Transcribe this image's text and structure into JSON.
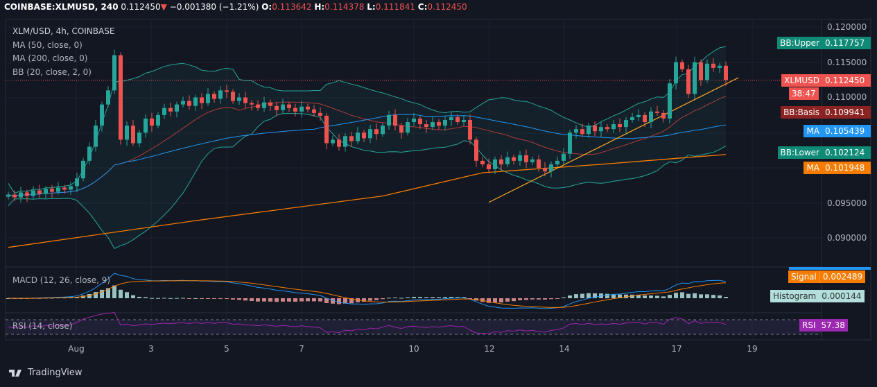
{
  "header": {
    "symbol": "COINBASE:XLMUSD, 240",
    "last": "0.112450",
    "change": "−0.001380 (−1.21%)",
    "o_label": "O:",
    "o": "0.113642",
    "h_label": "H:",
    "h": "0.114378",
    "l_label": "L:",
    "l": "0.111841",
    "c_label": "C:",
    "c": "0.112450"
  },
  "legend": {
    "title": "XLM/USD, 4h, COINBASE",
    "ma50": "MA (50, close, 0)",
    "ma200": "MA (200, close, 0)",
    "bb": "BB (20, close, 2, 0)",
    "macd": "MACD (12, 26, close, 9)",
    "rsi": "RSI (14, close)"
  },
  "price_axis": [
    "0.120000",
    "0.115000",
    "0.110000",
    "0.095000",
    "0.090000"
  ],
  "tags": [
    {
      "label": "BB:Upper",
      "value": "0.117757",
      "color": "#0e8a77",
      "price": 0.117757
    },
    {
      "label": "XLMUSD",
      "value": "0.112450",
      "color": "#ef5350",
      "price": 0.11245
    },
    {
      "label": "BB:Basis",
      "value": "0.109941",
      "color": "#8b2323",
      "price": 0.109941
    },
    {
      "label": "MA",
      "value": "0.105439",
      "color": "#2196f3",
      "price": 0.105439
    },
    {
      "label": "BB:Lower",
      "value": "0.102124",
      "color": "#0e8a77",
      "price": 0.102124
    },
    {
      "label": "MA",
      "value": "0.101948",
      "color": "#f57c00",
      "price": 0.101948
    }
  ],
  "countdown": "38:47",
  "macd_tags": {
    "signal_label": "Signal",
    "signal": "0.002489",
    "hist_label": "Histogram",
    "hist": "0.000144"
  },
  "rsi_tag": {
    "label": "RSI",
    "value": "57.38"
  },
  "time_axis": [
    "Aug",
    "3",
    "5",
    "7",
    "10",
    "12",
    "14",
    "17",
    "19"
  ],
  "brand": "TradingView",
  "colors": {
    "up": "#26a69a",
    "down": "#ef5350",
    "ma50": "#2196f3",
    "ma200": "#f57c00",
    "bb": "#26a69a",
    "basis": "#b23a3a",
    "rsi": "#9c27b0",
    "trend": "#f9a825"
  },
  "chart_data": {
    "type": "candlestick",
    "title": "XLM/USD, 4h, COINBASE",
    "ylim": [
      0.0855,
      0.121
    ],
    "closes": [
      0.0962,
      0.0958,
      0.0965,
      0.096,
      0.0968,
      0.0963,
      0.097,
      0.0966,
      0.0972,
      0.0969,
      0.0974,
      0.0985,
      0.101,
      0.103,
      0.106,
      0.109,
      0.111,
      0.116,
      0.104,
      0.106,
      0.1035,
      0.105,
      0.107,
      0.106,
      0.1075,
      0.1085,
      0.108,
      0.109,
      0.1095,
      0.1088,
      0.11,
      0.1092,
      0.1105,
      0.1098,
      0.111,
      0.1108,
      0.1095,
      0.11,
      0.1092,
      0.109,
      0.1085,
      0.1093,
      0.1088,
      0.1082,
      0.109,
      0.1085,
      0.108,
      0.1087,
      0.1083,
      0.1078,
      0.1074,
      0.1035,
      0.104,
      0.103,
      0.1045,
      0.1038,
      0.105,
      0.1042,
      0.1055,
      0.1048,
      0.106,
      0.1075,
      0.106,
      0.105,
      0.1065,
      0.107,
      0.1062,
      0.1058,
      0.1065,
      0.106,
      0.1068,
      0.1072,
      0.1065,
      0.1068,
      0.104,
      0.101,
      0.1005,
      0.0998,
      0.1012,
      0.1005,
      0.1015,
      0.101,
      0.1018,
      0.1008,
      0.1012,
      0.1,
      0.0995,
      0.1005,
      0.101,
      0.102,
      0.105,
      0.1055,
      0.1048,
      0.106,
      0.1052,
      0.1058,
      0.1055,
      0.1062,
      0.1058,
      0.1068,
      0.1072,
      0.1075,
      0.1065,
      0.108,
      0.1078,
      0.107,
      0.112,
      0.115,
      0.114,
      0.1105,
      0.115,
      0.1125,
      0.1148,
      0.1142,
      0.1145,
      0.1125
    ],
    "ma200_points": [
      [
        0,
        0.0887
      ],
      [
        30,
        0.0925
      ],
      [
        60,
        0.096
      ],
      [
        76,
        0.0993
      ],
      [
        95,
        0.1005
      ],
      [
        115,
        0.1019
      ]
    ],
    "trendline": [
      [
        77,
        0.0951
      ],
      [
        117,
        0.1128
      ]
    ],
    "current_price": 0.11245
  }
}
